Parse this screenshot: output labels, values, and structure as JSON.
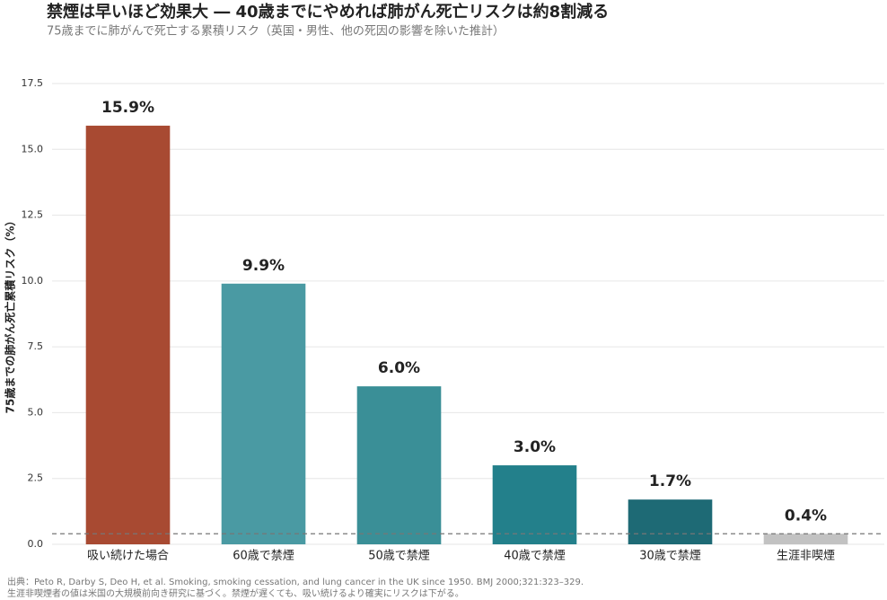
{
  "chart_data": {
    "type": "bar",
    "title": "禁煙は早いほど効果大 ― 40歳までにやめれば肺がん死亡リスクは約8割減る",
    "subtitle": "75歳までに肺がんで死亡する累積リスク（英国・男性、他の死因の影響を除いた推計）",
    "y_label": "75歳までの肺がん死亡累積リスク（%）",
    "categories": [
      "吸い続けた場合",
      "60歳で禁煙",
      "50歳で禁煙",
      "40歳で禁煙",
      "30歳で禁煙",
      "生涯非喫煙"
    ],
    "values": [
      15.9,
      9.9,
      6.0,
      3.0,
      1.7,
      0.4
    ],
    "value_labels": [
      "15.9%",
      "9.9%",
      "6.0%",
      "3.0%",
      "1.7%",
      "0.4%"
    ],
    "colors": [
      "#a84a32",
      "#4a9aa3",
      "#3a8f97",
      "#23808b",
      "#1e6a75",
      "#c2c2c2"
    ],
    "ylim": [
      0,
      17.5
    ],
    "yticks": [
      {
        "value": 0,
        "label": "0.0"
      },
      2.5,
      {
        "value": 5,
        "label": "5.0"
      },
      7.5,
      {
        "value": 10,
        "label": "10.0"
      },
      12.5,
      {
        "value": 15,
        "label": "15.0"
      },
      17.5
    ],
    "grid": true,
    "reference_line": {
      "value": 0.4,
      "color": "#777777"
    },
    "footnotes": [
      "出典：Peto R, Darby S, Deo H, et al. Smoking, smoking cessation, and lung cancer in the UK since 1950. BMJ 2000;321:323–329.",
      "生涯非喫煙者の値は米国の大規模前向き研究に基づく。禁煙が遅くても、吸い続けるより確実にリスクは下がる。"
    ]
  }
}
